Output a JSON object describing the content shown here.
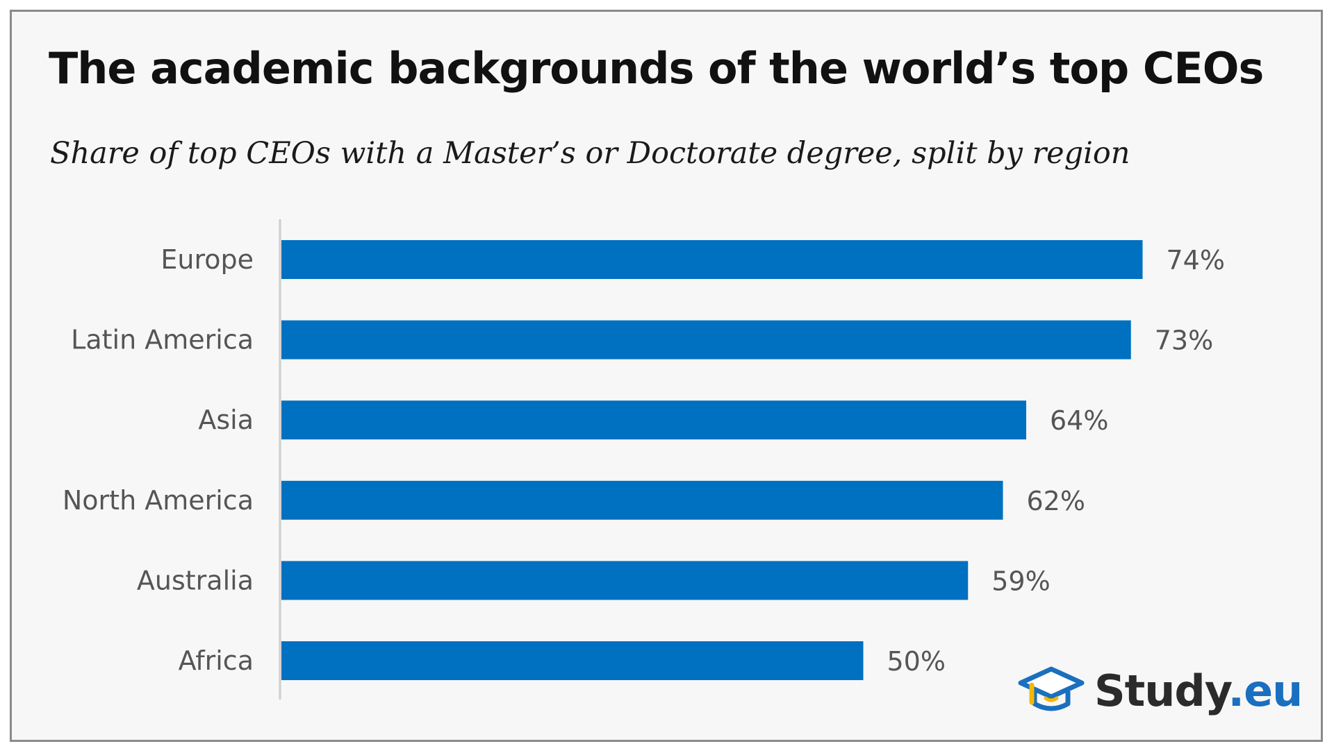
{
  "colors": {
    "bar": "#0070c0",
    "axis": "#cccccc",
    "brand_accent": "#1a6fbf",
    "brand_text": "#2b2b2b",
    "logo_yellow": "#f5b800"
  },
  "chart_data": {
    "type": "bar",
    "orientation": "horizontal",
    "title": "The academic backgrounds of the world’s top CEOs",
    "subtitle": "Share of top CEOs with a Master’s or Doctorate degree, split by region",
    "categories": [
      "Europe",
      "Latin America",
      "Asia",
      "North America",
      "Australia",
      "Africa"
    ],
    "values": [
      74,
      73,
      64,
      62,
      59,
      50
    ],
    "value_labels": [
      "74%",
      "73%",
      "64%",
      "62%",
      "59%",
      "50%"
    ],
    "xlim": [
      0,
      80
    ],
    "grid": false,
    "legend": "none"
  },
  "logo": {
    "icon": "graduation-cap-icon",
    "text_main": "Study",
    "text_accent": ".eu"
  }
}
